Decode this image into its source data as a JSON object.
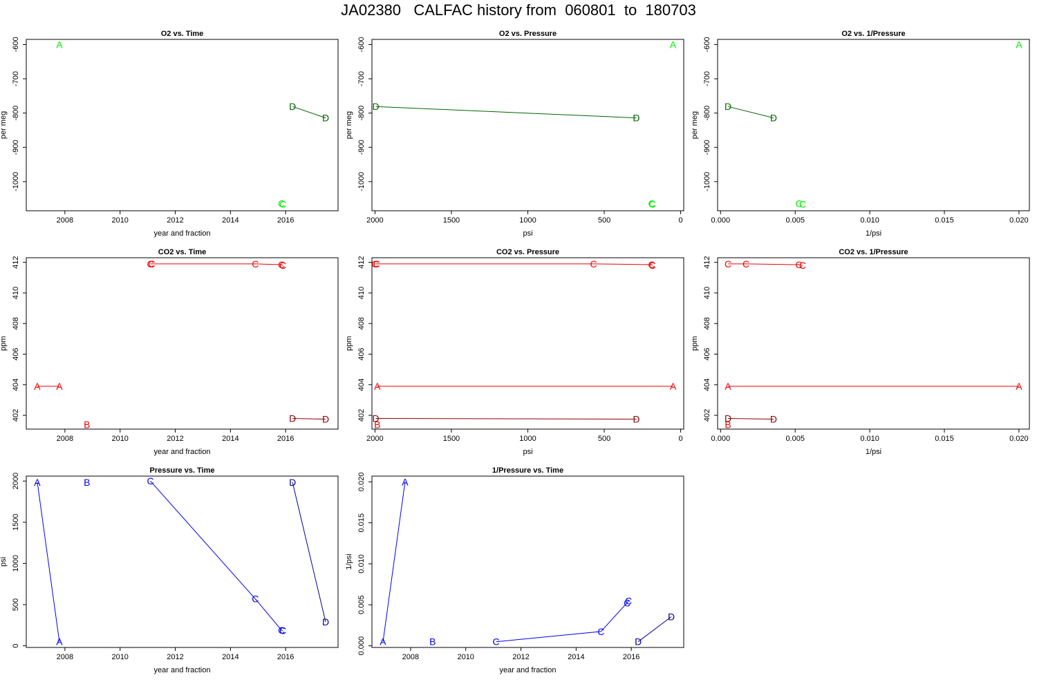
{
  "title": "JA02380   CALFAC history from  060801  to  180703",
  "colors": {
    "o2_light": "#00ee00",
    "o2_dark": "#006400",
    "co2_red": "#ee0000",
    "co2_dark": "#8b0000",
    "pressure_blue": "#0000ee",
    "pressure_dark": "#00008b"
  },
  "chart_data": [
    {
      "id": "o2-vs-time",
      "type": "scatter",
      "title": "O2 vs. Time",
      "xlabel": "year and fraction",
      "ylabel": "per meg",
      "xlim": [
        2006.6,
        2017.9
      ],
      "ylim": [
        -1085,
        -585
      ],
      "xticks": [
        2008,
        2010,
        2012,
        2014,
        2016
      ],
      "xticklabels": [
        "2008",
        "2010",
        "2012",
        "2014",
        "2016"
      ],
      "yticks": [
        -600,
        -700,
        -800,
        -900,
        -1000
      ],
      "yticklabels": [
        "-600",
        "-700",
        "-800",
        "-900",
        "-1000"
      ],
      "series": [
        {
          "color": "#00ee00",
          "points": [
            {
              "x": 2007.8,
              "y": -600,
              "label": "A"
            }
          ]
        },
        {
          "color": "#00ee00",
          "points": [
            {
              "x": 2015.85,
              "y": -1064,
              "label": "C"
            },
            {
              "x": 2015.9,
              "y": -1066,
              "label": "C"
            }
          ]
        },
        {
          "color": "#006400",
          "line": true,
          "points": [
            {
              "x": 2016.25,
              "y": -781,
              "label": "D"
            },
            {
              "x": 2017.45,
              "y": -814,
              "label": "D"
            }
          ]
        }
      ]
    },
    {
      "id": "o2-vs-pressure",
      "type": "scatter",
      "title": "O2 vs. Pressure",
      "xlabel": "psi",
      "ylabel": "per meg",
      "xlim": [
        2020,
        -20
      ],
      "ylim": [
        -1085,
        -585
      ],
      "xticks": [
        2000,
        1500,
        1000,
        500,
        0
      ],
      "xticklabels": [
        "2000",
        "1500",
        "1000",
        "500",
        "0"
      ],
      "yticks": [
        -600,
        -700,
        -800,
        -900,
        -1000
      ],
      "yticklabels": [
        "-600",
        "-700",
        "-800",
        "-900",
        "-1000"
      ],
      "series": [
        {
          "color": "#00ee00",
          "points": [
            {
              "x": 50,
              "y": -600,
              "label": "A"
            }
          ]
        },
        {
          "color": "#00ee00",
          "points": [
            {
              "x": 190,
              "y": -1064,
              "label": "C"
            },
            {
              "x": 185,
              "y": -1066,
              "label": "C"
            }
          ]
        },
        {
          "color": "#006400",
          "line": true,
          "points": [
            {
              "x": 1995,
              "y": -781,
              "label": "D"
            },
            {
              "x": 290,
              "y": -814,
              "label": "D"
            }
          ]
        }
      ]
    },
    {
      "id": "o2-vs-inv-pressure",
      "type": "scatter",
      "title": "O2 vs. 1/Pressure",
      "xlabel": "1/psi",
      "ylabel": "per meg",
      "xlim": [
        -0.0002,
        0.0207
      ],
      "ylim": [
        -1085,
        -585
      ],
      "xticks": [
        0.0,
        0.005,
        0.01,
        0.015,
        0.02
      ],
      "xticklabels": [
        "0.000",
        "0.005",
        "0.010",
        "0.015",
        "0.020"
      ],
      "yticks": [
        -600,
        -700,
        -800,
        -900,
        -1000
      ],
      "yticklabels": [
        "-600",
        "-700",
        "-800",
        "-900",
        "-1000"
      ],
      "series": [
        {
          "color": "#00ee00",
          "points": [
            {
              "x": 0.02,
              "y": -600,
              "label": "A"
            }
          ]
        },
        {
          "color": "#00ee00",
          "points": [
            {
              "x": 0.00525,
              "y": -1064,
              "label": "C"
            },
            {
              "x": 0.0055,
              "y": -1066,
              "label": "C"
            }
          ]
        },
        {
          "color": "#006400",
          "line": true,
          "points": [
            {
              "x": 0.0005,
              "y": -781,
              "label": "D"
            },
            {
              "x": 0.00355,
              "y": -814,
              "label": "D"
            }
          ]
        }
      ]
    },
    {
      "id": "co2-vs-time",
      "type": "scatter",
      "title": "CO2 vs. Time",
      "xlabel": "year and fraction",
      "ylabel": "ppm",
      "xlim": [
        2006.6,
        2017.9
      ],
      "ylim": [
        401.1,
        412.3
      ],
      "xticks": [
        2008,
        2010,
        2012,
        2014,
        2016
      ],
      "xticklabels": [
        "2008",
        "2010",
        "2012",
        "2014",
        "2016"
      ],
      "yticks": [
        402,
        404,
        406,
        408,
        410,
        412
      ],
      "yticklabels": [
        "402",
        "404",
        "406",
        "408",
        "410",
        "412"
      ],
      "series": [
        {
          "color": "#ee0000",
          "line": true,
          "points": [
            {
              "x": 2007.0,
              "y": 403.9,
              "label": "A"
            },
            {
              "x": 2007.8,
              "y": 403.9,
              "label": "A"
            }
          ]
        },
        {
          "color": "#ee0000",
          "points": [
            {
              "x": 2008.8,
              "y": 401.4,
              "label": "B"
            }
          ]
        },
        {
          "color": "#ee0000",
          "line": true,
          "points": [
            {
              "x": 2011.1,
              "y": 411.9,
              "label": "C"
            },
            {
              "x": 2011.15,
              "y": 411.9,
              "label": "C"
            },
            {
              "x": 2014.9,
              "y": 411.9,
              "label": "C"
            },
            {
              "x": 2015.85,
              "y": 411.85,
              "label": "C"
            },
            {
              "x": 2015.9,
              "y": 411.8,
              "label": "C"
            }
          ]
        },
        {
          "color": "#8b0000",
          "line": true,
          "points": [
            {
              "x": 2016.25,
              "y": 401.8,
              "label": "D"
            },
            {
              "x": 2017.45,
              "y": 401.75,
              "label": "D"
            }
          ]
        }
      ]
    },
    {
      "id": "co2-vs-pressure",
      "type": "scatter",
      "title": "CO2 vs. Pressure",
      "xlabel": "psi",
      "ylabel": "ppm",
      "xlim": [
        2020,
        -20
      ],
      "ylim": [
        401.1,
        412.3
      ],
      "xticks": [
        2000,
        1500,
        1000,
        500,
        0
      ],
      "xticklabels": [
        "2000",
        "1500",
        "1000",
        "500",
        "0"
      ],
      "yticks": [
        402,
        404,
        406,
        408,
        410,
        412
      ],
      "yticklabels": [
        "402",
        "404",
        "406",
        "408",
        "410",
        "412"
      ],
      "series": [
        {
          "color": "#ee0000",
          "line": true,
          "points": [
            {
              "x": 1985,
              "y": 403.9,
              "label": "A"
            },
            {
              "x": 50,
              "y": 403.9,
              "label": "A"
            }
          ]
        },
        {
          "color": "#ee0000",
          "points": [
            {
              "x": 1985,
              "y": 401.4,
              "label": "B"
            }
          ]
        },
        {
          "color": "#ee0000",
          "line": true,
          "points": [
            {
              "x": 2000,
              "y": 411.9,
              "label": "C"
            },
            {
              "x": 1990,
              "y": 411.9,
              "label": "C"
            },
            {
              "x": 570,
              "y": 411.9,
              "label": "C"
            },
            {
              "x": 190,
              "y": 411.85,
              "label": "C"
            },
            {
              "x": 185,
              "y": 411.8,
              "label": "C"
            }
          ]
        },
        {
          "color": "#8b0000",
          "line": true,
          "points": [
            {
              "x": 1995,
              "y": 401.8,
              "label": "D"
            },
            {
              "x": 290,
              "y": 401.75,
              "label": "D"
            }
          ]
        }
      ]
    },
    {
      "id": "co2-vs-inv-pressure",
      "type": "scatter",
      "title": "CO2 vs. 1/Pressure",
      "xlabel": "1/psi",
      "ylabel": "ppm",
      "xlim": [
        -0.0002,
        0.0207
      ],
      "ylim": [
        401.1,
        412.3
      ],
      "xticks": [
        0.0,
        0.005,
        0.01,
        0.015,
        0.02
      ],
      "xticklabels": [
        "0.000",
        "0.005",
        "0.010",
        "0.015",
        "0.020"
      ],
      "yticks": [
        402,
        404,
        406,
        408,
        410,
        412
      ],
      "yticklabels": [
        "402",
        "404",
        "406",
        "408",
        "410",
        "412"
      ],
      "series": [
        {
          "color": "#ee0000",
          "line": true,
          "points": [
            {
              "x": 0.0005,
              "y": 403.9,
              "label": "A"
            },
            {
              "x": 0.02,
              "y": 403.9,
              "label": "A"
            }
          ]
        },
        {
          "color": "#ee0000",
          "points": [
            {
              "x": 0.0005,
              "y": 401.4,
              "label": "B"
            }
          ]
        },
        {
          "color": "#ee0000",
          "line": true,
          "points": [
            {
              "x": 0.0005,
              "y": 411.9,
              "label": "C"
            },
            {
              "x": 0.0017,
              "y": 411.9,
              "label": "C"
            },
            {
              "x": 0.00525,
              "y": 411.85,
              "label": "C"
            },
            {
              "x": 0.0055,
              "y": 411.8,
              "label": "C"
            }
          ]
        },
        {
          "color": "#8b0000",
          "line": true,
          "points": [
            {
              "x": 0.0005,
              "y": 401.8,
              "label": "D"
            },
            {
              "x": 0.00355,
              "y": 401.75,
              "label": "D"
            }
          ]
        }
      ]
    },
    {
      "id": "pressure-vs-time",
      "type": "scatter",
      "title": "Pressure vs. Time",
      "xlabel": "year and fraction",
      "ylabel": "psi",
      "xlim": [
        2006.6,
        2017.9
      ],
      "ylim": [
        -20,
        2060
      ],
      "xticks": [
        2008,
        2010,
        2012,
        2014,
        2016
      ],
      "xticklabels": [
        "2008",
        "2010",
        "2012",
        "2014",
        "2016"
      ],
      "yticks": [
        0,
        500,
        1000,
        1500,
        2000
      ],
      "yticklabels": [
        "0",
        "500",
        "1000",
        "1500",
        "2000"
      ],
      "series": [
        {
          "color": "#0000ee",
          "line": true,
          "points": [
            {
              "x": 2007.0,
              "y": 1985,
              "label": "A"
            },
            {
              "x": 2007.8,
              "y": 50,
              "label": "A"
            }
          ]
        },
        {
          "color": "#0000ee",
          "points": [
            {
              "x": 2008.8,
              "y": 1985,
              "label": "B"
            }
          ]
        },
        {
          "color": "#0000ee",
          "line": true,
          "points": [
            {
              "x": 2011.1,
              "y": 2000,
              "label": "C"
            },
            {
              "x": 2014.9,
              "y": 570,
              "label": "C"
            },
            {
              "x": 2015.85,
              "y": 190,
              "label": "C"
            },
            {
              "x": 2015.9,
              "y": 185,
              "label": "C"
            }
          ]
        },
        {
          "color": "#00008b",
          "line": true,
          "points": [
            {
              "x": 2016.25,
              "y": 1985,
              "label": "D"
            },
            {
              "x": 2017.45,
              "y": 290,
              "label": "D"
            }
          ]
        }
      ]
    },
    {
      "id": "inv-pressure-vs-time",
      "type": "scatter",
      "title": "1/Pressure vs. Time",
      "xlabel": "year and fraction",
      "ylabel": "1/psi",
      "xlim": [
        2006.6,
        2017.9
      ],
      "ylim": [
        -0.0002,
        0.0207
      ],
      "xticks": [
        2008,
        2010,
        2012,
        2014,
        2016
      ],
      "xticklabels": [
        "2008",
        "2010",
        "2012",
        "2014",
        "2016"
      ],
      "yticks": [
        0.0,
        0.005,
        0.01,
        0.015,
        0.02
      ],
      "yticklabels": [
        "0.000",
        "0.005",
        "0.010",
        "0.015",
        "0.020"
      ],
      "series": [
        {
          "color": "#0000ee",
          "line": true,
          "points": [
            {
              "x": 2007.0,
              "y": 0.0005,
              "label": "A"
            },
            {
              "x": 2007.8,
              "y": 0.02,
              "label": "A"
            }
          ]
        },
        {
          "color": "#0000ee",
          "points": [
            {
              "x": 2008.8,
              "y": 0.0005,
              "label": "B"
            }
          ]
        },
        {
          "color": "#0000ee",
          "line": true,
          "points": [
            {
              "x": 2011.1,
              "y": 0.0005,
              "label": "C"
            },
            {
              "x": 2014.9,
              "y": 0.00175,
              "label": "C"
            },
            {
              "x": 2015.85,
              "y": 0.00525,
              "label": "C"
            },
            {
              "x": 2015.9,
              "y": 0.0055,
              "label": "C"
            }
          ]
        },
        {
          "color": "#00008b",
          "line": true,
          "points": [
            {
              "x": 2016.25,
              "y": 0.0005,
              "label": "D"
            },
            {
              "x": 2017.45,
              "y": 0.00355,
              "label": "D"
            }
          ]
        }
      ]
    }
  ]
}
